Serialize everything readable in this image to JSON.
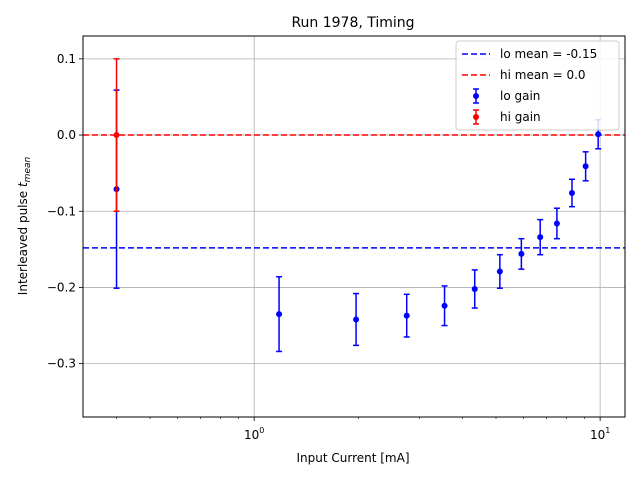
{
  "chart_data": {
    "type": "scatter",
    "title": "Run 1978, Timing",
    "xlabel": "Input Current [mA]",
    "ylabel_main": "Interleaved pulse ",
    "ylabel_italic": "t",
    "ylabel_sub": "mean",
    "xscale": "log",
    "xlim": [
      0.32,
      11.8
    ],
    "ylim": [
      -0.37,
      0.13
    ],
    "grid": true,
    "legend_position": "top-right",
    "x_ticks": [
      {
        "value": 1,
        "label_base": "10",
        "label_exp": "0"
      },
      {
        "value": 10,
        "label_base": "10",
        "label_exp": "1"
      }
    ],
    "y_ticks": [
      {
        "value": 0.1,
        "label": "0.1"
      },
      {
        "value": 0.0,
        "label": "0.0"
      },
      {
        "value": -0.1,
        "label": "−0.1"
      },
      {
        "value": -0.2,
        "label": "−0.2"
      },
      {
        "value": -0.3,
        "label": "−0.3"
      }
    ],
    "hlines": [
      {
        "name": "lo mean = -0.15",
        "y": -0.148,
        "color": "#0000ff",
        "style": "dashed"
      },
      {
        "name": "hi mean = 0.0",
        "y": 0.0,
        "color": "#ff0000",
        "style": "dashed"
      }
    ],
    "series": [
      {
        "name": "lo gain",
        "color": "#0000ff",
        "x": [
          0.4,
          1.18,
          1.97,
          2.76,
          3.55,
          4.34,
          5.13,
          5.92,
          6.71,
          7.5,
          8.29,
          9.08,
          9.87
        ],
        "y": [
          -0.071,
          -0.235,
          -0.242,
          -0.237,
          -0.224,
          -0.202,
          -0.179,
          -0.156,
          -0.134,
          -0.116,
          -0.076,
          -0.041,
          0.001
        ],
        "yerr": [
          0.13,
          0.049,
          0.034,
          0.028,
          0.026,
          0.025,
          0.022,
          0.02,
          0.023,
          0.02,
          0.018,
          0.019,
          0.019
        ]
      },
      {
        "name": "hi gain",
        "color": "#ff0000",
        "x": [
          0.4
        ],
        "y": [
          0.0
        ],
        "yerr": [
          0.1
        ]
      }
    ]
  }
}
